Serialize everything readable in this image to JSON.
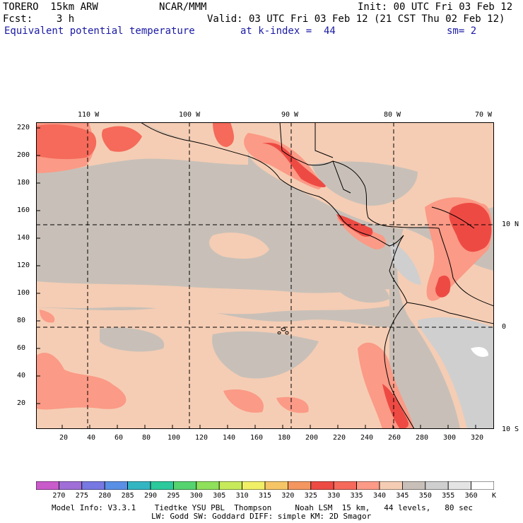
{
  "header": {
    "model": "TORERO  15km ARW",
    "center": "NCAR/MMM",
    "init": "Init: 00 UTC Fri 03 Feb 12",
    "fcst": "Fcst:    3 h",
    "valid": "Valid: 03 UTC Fri 03 Feb 12 (21 CST Thu 02 Feb 12)",
    "field": "Equivalent potential temperature",
    "level": "at k-index =  44",
    "smooth": "sm= 2"
  },
  "map": {
    "top_lon_labels": [
      "110 W",
      "100 W",
      "90 W",
      "80 W",
      "70 W"
    ],
    "right_lat_labels": [
      "10 N",
      "0",
      "10 S"
    ],
    "left_y_ticks": [
      "220",
      "200",
      "180",
      "160",
      "140",
      "120",
      "100",
      "80",
      "60",
      "40",
      "20"
    ],
    "bottom_x_ticks": [
      "20",
      "40",
      "60",
      "80",
      "100",
      "120",
      "140",
      "160",
      "180",
      "200",
      "220",
      "240",
      "260",
      "280",
      "300",
      "320"
    ],
    "colors": {
      "base": "#c8c0b8",
      "light": "#f5cdb4",
      "mid": "#fb9a86",
      "warm": "#f56a5a",
      "hot": "#ee4a44",
      "land_grey": "#cfcfcf",
      "line": "#000000"
    }
  },
  "colorbar": {
    "labels": [
      "270",
      "275",
      "280",
      "285",
      "290",
      "295",
      "300",
      "305",
      "310",
      "315",
      "320",
      "325",
      "330",
      "335",
      "340",
      "345",
      "350",
      "355",
      "360",
      "K"
    ],
    "colors": [
      "#c95bcb",
      "#9f6ed6",
      "#7878e3",
      "#5a8fe6",
      "#34b5c2",
      "#2bc99b",
      "#55d36f",
      "#8fe05a",
      "#c6ea5a",
      "#f0ef66",
      "#f6c566",
      "#f49660",
      "#ee4a44",
      "#f56a5a",
      "#fb9a86",
      "#f5cdb4",
      "#c8c0b8",
      "#cfcfcf",
      "#e4e4e4",
      "#ffffff"
    ]
  },
  "footer": {
    "line1": "Model Info: V3.3.1    Tiedtke YSU PBL  Thompson     Noah LSM  15 km,   44 levels,   80 sec",
    "line2": "LW: Godd SW: Goddard DIFF: simple KM: 2D Smagor"
  }
}
